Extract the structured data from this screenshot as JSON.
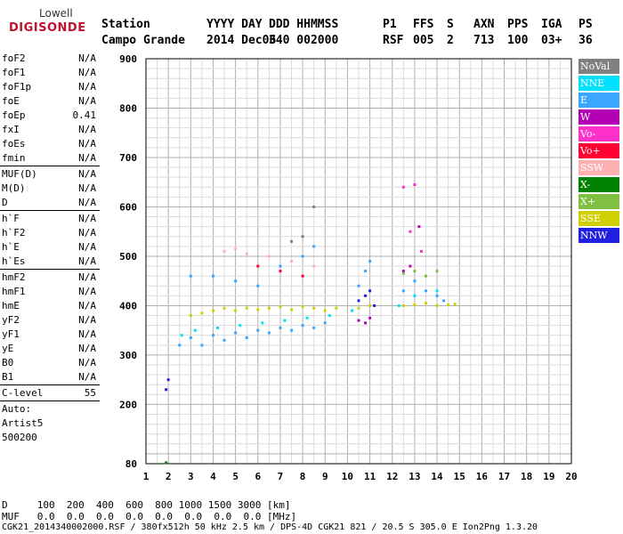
{
  "logo": {
    "line1": "Lowell",
    "line2": "DIGISONDE"
  },
  "header": {
    "row1": [
      "Station",
      "YYYY DAY",
      "DDD HHMMSS",
      "P1",
      "FFS",
      "S",
      "AXN",
      "PPS",
      "IGA",
      "PS"
    ],
    "row2": [
      "Campo Grande",
      "2014 Dec06",
      "340 002000",
      "RSF",
      "005",
      "2",
      "713",
      "100",
      "03+",
      "36"
    ]
  },
  "params": [
    {
      "name": "foF2",
      "value": "N/A"
    },
    {
      "name": "foF1",
      "value": "N/A"
    },
    {
      "name": "foF1p",
      "value": "N/A"
    },
    {
      "name": "foE",
      "value": "N/A"
    },
    {
      "name": "foEp",
      "value": "0.41"
    },
    {
      "name": "fxI",
      "value": "N/A"
    },
    {
      "name": "foEs",
      "value": "N/A"
    },
    {
      "name": "fmin",
      "value": "N/A"
    },
    {
      "sep": true
    },
    {
      "name": "MUF(D)",
      "value": "N/A"
    },
    {
      "name": "M(D)",
      "value": "N/A"
    },
    {
      "name": "D",
      "value": "N/A"
    },
    {
      "sep": true
    },
    {
      "name": "h`F",
      "value": "N/A"
    },
    {
      "name": "h`F2",
      "value": "N/A"
    },
    {
      "name": "h`E",
      "value": "N/A"
    },
    {
      "name": "h`Es",
      "value": "N/A"
    },
    {
      "sep": true
    },
    {
      "name": "hmF2",
      "value": "N/A"
    },
    {
      "name": "hmF1",
      "value": "N/A"
    },
    {
      "name": "hmE",
      "value": "N/A"
    },
    {
      "name": "yF2",
      "value": "N/A"
    },
    {
      "name": "yF1",
      "value": "N/A"
    },
    {
      "name": "yE",
      "value": "N/A"
    },
    {
      "name": "B0",
      "value": "N/A"
    },
    {
      "name": "B1",
      "value": "N/A"
    },
    {
      "sep": true
    },
    {
      "name": "C-level",
      "value": "55"
    },
    {
      "sep": true
    },
    {
      "name": "Auto:",
      "value": ""
    },
    {
      "name": "Artist5",
      "value": ""
    },
    {
      "name": "500200",
      "value": ""
    }
  ],
  "legend": [
    {
      "label": "NoVal",
      "color": "#808080"
    },
    {
      "label": "NNE",
      "color": "#00e0ff"
    },
    {
      "label": "E",
      "color": "#3aa6ff"
    },
    {
      "label": "W",
      "color": "#b400b4"
    },
    {
      "label": "Vo-",
      "color": "#ff30c8"
    },
    {
      "label": "Vo+",
      "color": "#ff0030"
    },
    {
      "label": "SSW",
      "color": "#ffb0b0"
    },
    {
      "label": "X-",
      "color": "#008000"
    },
    {
      "label": "X+",
      "color": "#80c040"
    },
    {
      "label": "SSE",
      "color": "#d0d000"
    },
    {
      "label": "NNW",
      "color": "#2020e0"
    }
  ],
  "footer": {
    "d_row": "D     100  200  400  600  800 1000 1500 3000 [km]",
    "muf_row": "MUF   0.0  0.0  0.0  0.0  0.0  0.0  0.0  0.0 [MHz]",
    "info": "CGK21_2014340002000.RSF / 380fx512h 50 kHz 2.5 km / DPS-4D CGK21 821 / 20.5 S 305.0 E Ion2Png 1.3.20"
  },
  "chart_data": {
    "type": "scatter",
    "xlabel": "",
    "ylabel": "",
    "xlim": [
      1,
      20
    ],
    "ylim": [
      80,
      900
    ],
    "x_ticks": [
      1,
      2,
      3,
      4,
      5,
      6,
      7,
      8,
      9,
      10,
      11,
      12,
      13,
      14,
      15,
      16,
      17,
      18,
      19,
      20
    ],
    "y_ticks": [
      80,
      200,
      300,
      400,
      500,
      600,
      700,
      800,
      900
    ],
    "grid": true,
    "series": [
      {
        "name": "E",
        "points": [
          [
            2.5,
            320
          ],
          [
            3.0,
            335
          ],
          [
            3.5,
            320
          ],
          [
            4.0,
            340
          ],
          [
            4.5,
            330
          ],
          [
            5.0,
            345
          ],
          [
            5.5,
            335
          ],
          [
            6.0,
            350
          ],
          [
            6.5,
            345
          ],
          [
            7.0,
            355
          ],
          [
            7.5,
            350
          ],
          [
            8.0,
            360
          ],
          [
            8.5,
            355
          ],
          [
            9.0,
            365
          ],
          [
            3.0,
            460
          ],
          [
            4.0,
            460
          ],
          [
            5.0,
            450
          ],
          [
            6.0,
            440
          ],
          [
            7.0,
            480
          ],
          [
            8.0,
            500
          ],
          [
            8.5,
            520
          ],
          [
            10.5,
            440
          ],
          [
            10.8,
            470
          ],
          [
            11.0,
            490
          ],
          [
            13.5,
            430
          ],
          [
            14.0,
            420
          ],
          [
            14.3,
            410
          ],
          [
            12.5,
            430
          ],
          [
            13.0,
            450
          ]
        ]
      },
      {
        "name": "NNE",
        "points": [
          [
            2.6,
            340
          ],
          [
            3.2,
            350
          ],
          [
            4.2,
            355
          ],
          [
            5.2,
            360
          ],
          [
            6.2,
            365
          ],
          [
            7.2,
            370
          ],
          [
            8.2,
            375
          ],
          [
            9.2,
            380
          ],
          [
            10.2,
            390
          ],
          [
            11.0,
            400
          ],
          [
            13.0,
            420
          ],
          [
            14.0,
            430
          ],
          [
            12.3,
            400
          ]
        ]
      },
      {
        "name": "SSE",
        "points": [
          [
            3.0,
            380
          ],
          [
            3.5,
            385
          ],
          [
            4.0,
            390
          ],
          [
            4.5,
            395
          ],
          [
            5.0,
            390
          ],
          [
            5.5,
            395
          ],
          [
            6.0,
            392
          ],
          [
            6.5,
            395
          ],
          [
            7.0,
            398
          ],
          [
            7.5,
            392
          ],
          [
            8.0,
            398
          ],
          [
            8.5,
            395
          ],
          [
            9.0,
            390
          ],
          [
            9.5,
            395
          ],
          [
            10.5,
            395
          ],
          [
            11.0,
            400
          ],
          [
            12.5,
            400
          ],
          [
            13.0,
            402
          ],
          [
            13.5,
            405
          ],
          [
            14.0,
            400
          ],
          [
            14.5,
            402
          ],
          [
            14.8,
            403
          ]
        ]
      },
      {
        "name": "W",
        "points": [
          [
            10.5,
            370
          ],
          [
            10.8,
            365
          ],
          [
            11.0,
            375
          ],
          [
            12.5,
            470
          ],
          [
            12.8,
            480
          ],
          [
            13.2,
            560
          ]
        ]
      },
      {
        "name": "Vo-",
        "points": [
          [
            12.5,
            640
          ],
          [
            13.0,
            645
          ],
          [
            12.8,
            550
          ],
          [
            13.3,
            510
          ]
        ]
      },
      {
        "name": "NNW",
        "points": [
          [
            10.5,
            410
          ],
          [
            10.8,
            420
          ],
          [
            11.0,
            430
          ],
          [
            11.2,
            400
          ],
          [
            1.9,
            230
          ],
          [
            2.0,
            250
          ]
        ]
      },
      {
        "name": "SSW",
        "points": [
          [
            4.5,
            510
          ],
          [
            5.0,
            515
          ],
          [
            5.5,
            505
          ],
          [
            6.5,
            500
          ],
          [
            7.5,
            490
          ],
          [
            8.5,
            480
          ]
        ]
      },
      {
        "name": "X+",
        "points": [
          [
            12.5,
            465
          ],
          [
            13.0,
            470
          ],
          [
            13.5,
            460
          ],
          [
            14.0,
            470
          ]
        ]
      },
      {
        "name": "X-",
        "points": [
          [
            1.9,
            82
          ]
        ]
      },
      {
        "name": "NoVal",
        "points": [
          [
            7.5,
            530
          ],
          [
            8.0,
            540
          ],
          [
            8.5,
            600
          ]
        ]
      },
      {
        "name": "Vo+",
        "points": [
          [
            6.0,
            480
          ],
          [
            7.0,
            470
          ],
          [
            8.0,
            460
          ]
        ]
      }
    ]
  }
}
